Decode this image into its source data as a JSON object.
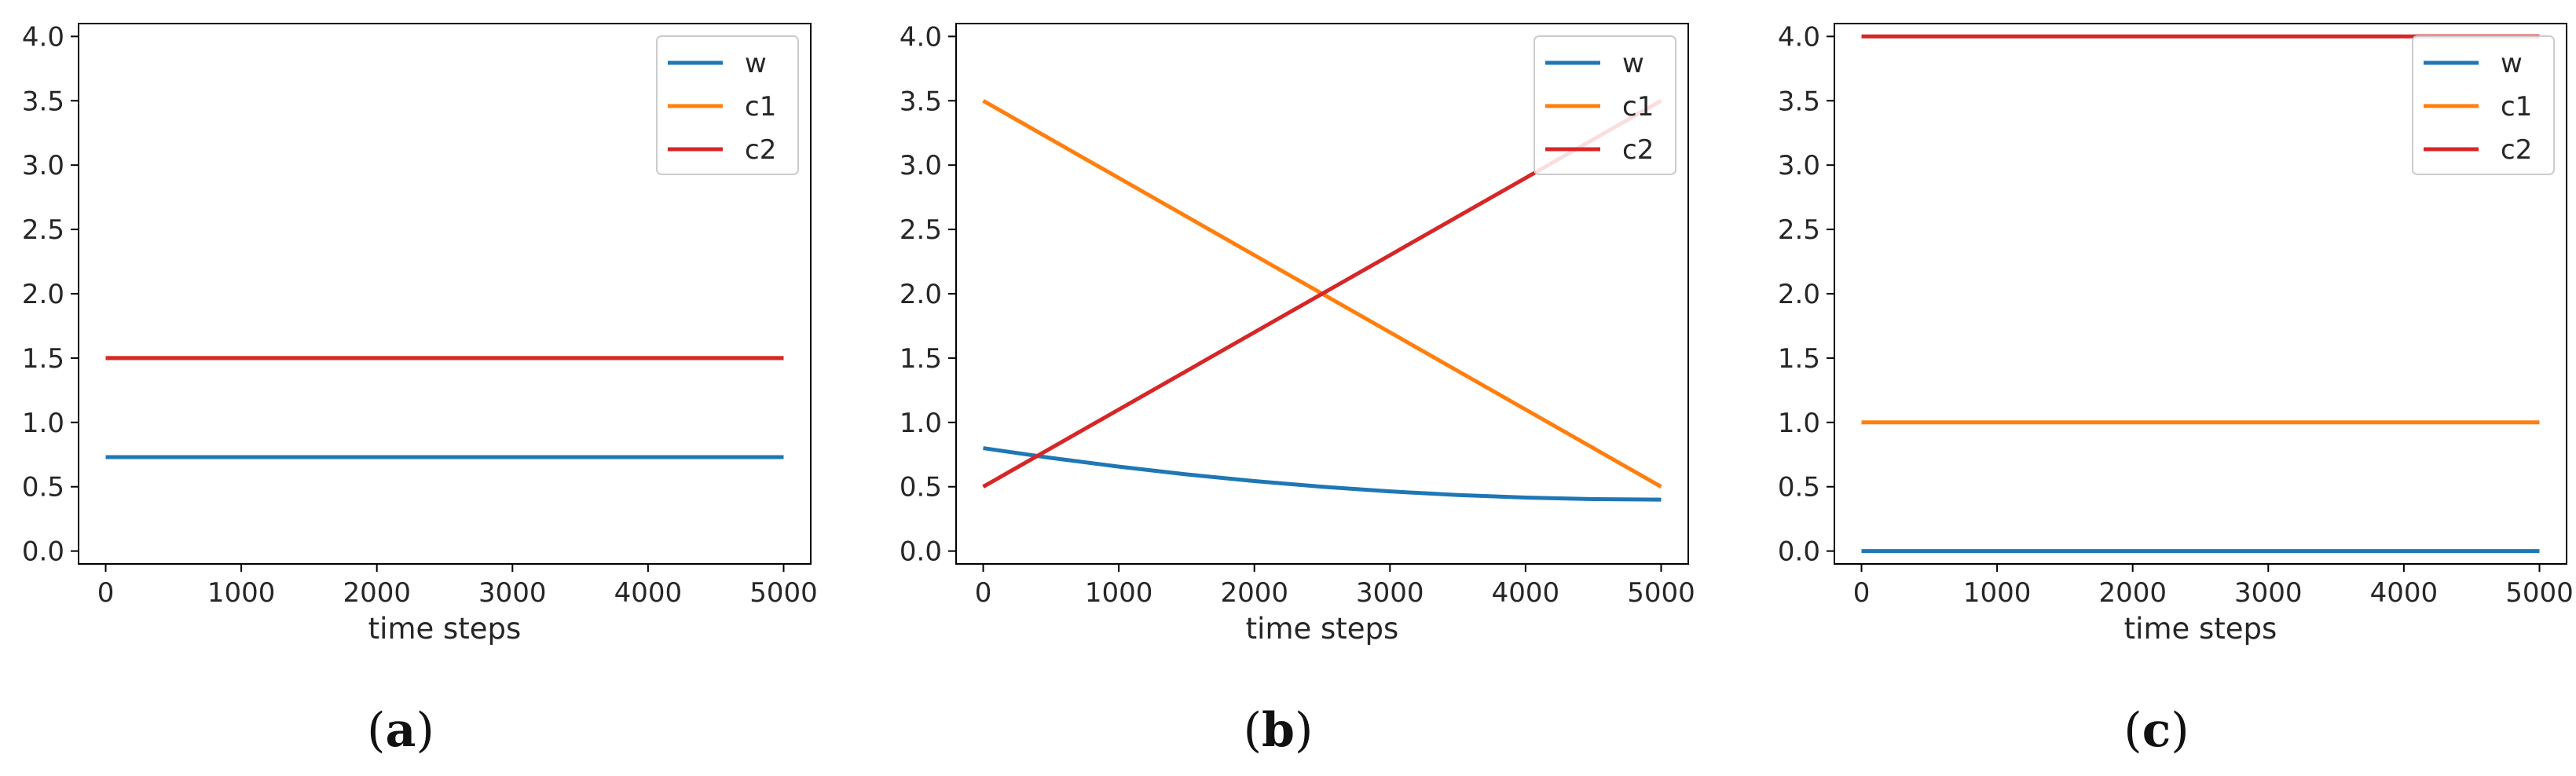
{
  "chart_data": [
    {
      "type": "line",
      "panel_label": "(a)",
      "panel_open": "(",
      "panel_letter": "a",
      "panel_close": ")",
      "xlabel": "time steps",
      "ylabel": "",
      "xlim": [
        -200,
        5200
      ],
      "ylim": [
        -0.1,
        4.1
      ],
      "xticks": [
        0,
        1000,
        2000,
        3000,
        4000,
        5000
      ],
      "yticks": [
        0.0,
        0.5,
        1.0,
        1.5,
        2.0,
        2.5,
        3.0,
        3.5,
        4.0
      ],
      "xtick_labels": [
        "0",
        "1000",
        "2000",
        "3000",
        "4000",
        "5000"
      ],
      "ytick_labels": [
        "0.0",
        "0.5",
        "1.0",
        "1.5",
        "2.0",
        "2.5",
        "3.0",
        "3.5",
        "4.0"
      ],
      "legend_position": "top-right",
      "series": [
        {
          "name": "w",
          "color": "#1f77b4",
          "x": [
            0,
            5000
          ],
          "values": [
            0.73,
            0.73
          ]
        },
        {
          "name": "c1",
          "color": "#ff7f0e",
          "x": [
            0,
            5000
          ],
          "values": [
            1.5,
            1.5
          ]
        },
        {
          "name": "c2",
          "color": "#d62728",
          "x": [
            0,
            5000
          ],
          "values": [
            1.5,
            1.5
          ]
        }
      ]
    },
    {
      "type": "line",
      "panel_label": "(b)",
      "panel_open": "(",
      "panel_letter": "b",
      "panel_close": ")",
      "xlabel": "time steps",
      "ylabel": "",
      "xlim": [
        -200,
        5200
      ],
      "ylim": [
        -0.1,
        4.1
      ],
      "xticks": [
        0,
        1000,
        2000,
        3000,
        4000,
        5000
      ],
      "yticks": [
        0.0,
        0.5,
        1.0,
        1.5,
        2.0,
        2.5,
        3.0,
        3.5,
        4.0
      ],
      "xtick_labels": [
        "0",
        "1000",
        "2000",
        "3000",
        "4000",
        "5000"
      ],
      "ytick_labels": [
        "0.0",
        "0.5",
        "1.0",
        "1.5",
        "2.0",
        "2.5",
        "3.0",
        "3.5",
        "4.0"
      ],
      "legend_position": "top-right",
      "series": [
        {
          "name": "w",
          "color": "#1f77b4",
          "x": [
            0,
            500,
            1000,
            1500,
            2000,
            2500,
            3000,
            3500,
            4000,
            4500,
            5000
          ],
          "values": [
            0.8,
            0.724,
            0.656,
            0.596,
            0.544,
            0.5,
            0.464,
            0.436,
            0.416,
            0.404,
            0.4
          ]
        },
        {
          "name": "c1",
          "color": "#ff7f0e",
          "x": [
            0,
            5000
          ],
          "values": [
            3.5,
            0.5
          ]
        },
        {
          "name": "c2",
          "color": "#d62728",
          "x": [
            0,
            5000
          ],
          "values": [
            0.5,
            3.5
          ]
        }
      ]
    },
    {
      "type": "line",
      "panel_label": "(c)",
      "panel_open": "(",
      "panel_letter": "c",
      "panel_close": ")",
      "xlabel": "time steps",
      "ylabel": "",
      "xlim": [
        -200,
        5200
      ],
      "ylim": [
        -0.1,
        4.1
      ],
      "xticks": [
        0,
        1000,
        2000,
        3000,
        4000,
        5000
      ],
      "yticks": [
        0.0,
        0.5,
        1.0,
        1.5,
        2.0,
        2.5,
        3.0,
        3.5,
        4.0
      ],
      "xtick_labels": [
        "0",
        "1000",
        "2000",
        "3000",
        "4000",
        "5000"
      ],
      "ytick_labels": [
        "0.0",
        "0.5",
        "1.0",
        "1.5",
        "2.0",
        "2.5",
        "3.0",
        "3.5",
        "4.0"
      ],
      "legend_position": "top-right",
      "series": [
        {
          "name": "w",
          "color": "#1f77b4",
          "x": [
            0,
            5000
          ],
          "values": [
            0.0,
            0.0
          ]
        },
        {
          "name": "c1",
          "color": "#ff7f0e",
          "x": [
            0,
            5000
          ],
          "values": [
            1.0,
            1.0
          ]
        },
        {
          "name": "c2",
          "color": "#d62728",
          "x": [
            0,
            5000
          ],
          "values": [
            4.0,
            4.0
          ]
        }
      ]
    }
  ]
}
